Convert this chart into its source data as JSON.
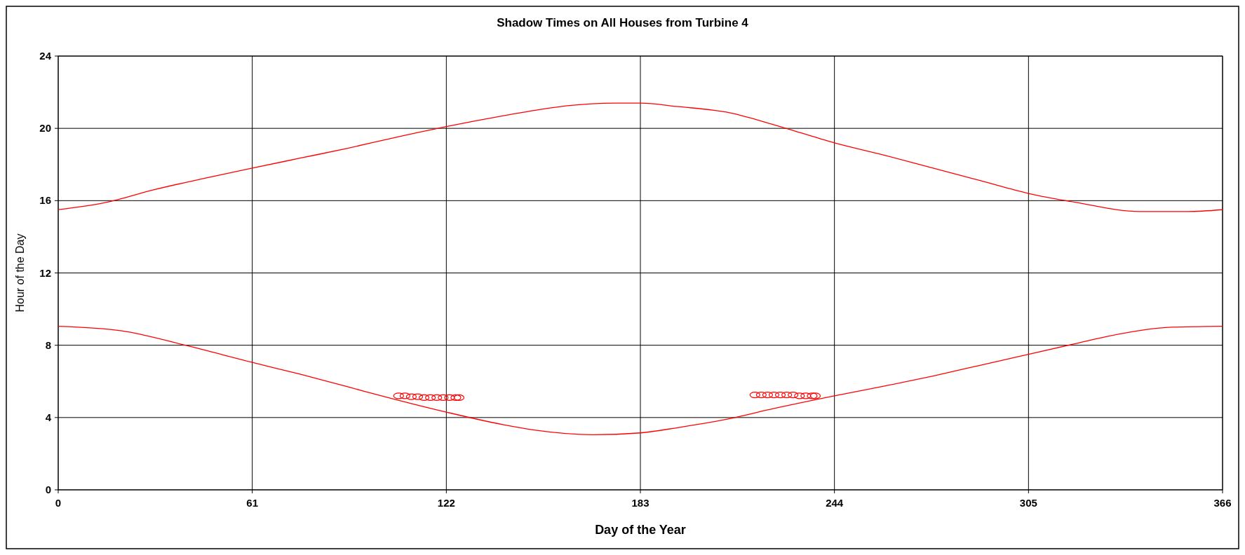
{
  "chart_data": {
    "type": "line",
    "title": "Shadow Times on All Houses from Turbine 4",
    "xlabel": "Day of the Year",
    "ylabel": "Hour of the Day",
    "xlim": [
      0,
      366
    ],
    "xticks": [
      0,
      61,
      122,
      183,
      244,
      305,
      366
    ],
    "ylim": [
      0,
      24
    ],
    "yticks": [
      0,
      4,
      8,
      12,
      16,
      20,
      24
    ],
    "grid": true,
    "series": [
      {
        "color": "#ff0000",
        "marker": "none",
        "x": [
          0,
          15,
          30,
          45,
          61,
          76,
          91,
          106,
          122,
          140,
          150,
          160,
          175,
          183,
          195,
          210,
          225,
          244,
          260,
          275,
          290,
          305,
          320,
          340,
          355,
          366
        ],
        "values": [
          15.5,
          15.9,
          16.6,
          17.2,
          17.8,
          18.35,
          18.9,
          19.5,
          20.1,
          20.7,
          21.0,
          21.25,
          21.4,
          21.4,
          21.2,
          20.9,
          20.2,
          19.2,
          18.5,
          17.8,
          17.1,
          16.4,
          15.9,
          15.4,
          15.4,
          15.5
        ]
      },
      {
        "color": "#ff0000",
        "marker": "none",
        "x": [
          0,
          20,
          40,
          61,
          76,
          91,
          106,
          122,
          140,
          150,
          168,
          183,
          195,
          210,
          225,
          244,
          260,
          275,
          290,
          305,
          320,
          330,
          350,
          366
        ],
        "values": [
          9.05,
          8.8,
          8.0,
          7.05,
          6.4,
          5.7,
          5.0,
          4.3,
          3.6,
          3.3,
          3.05,
          3.15,
          3.45,
          3.9,
          4.5,
          5.2,
          5.75,
          6.3,
          6.9,
          7.5,
          8.1,
          8.5,
          9.0,
          9.05
        ]
      },
      {
        "type": "scatter",
        "color": "#ff0000",
        "marker": "circle",
        "x": [
          107,
          109,
          111,
          113,
          115,
          117,
          119,
          121,
          123,
          125,
          126
        ],
        "values": [
          5.2,
          5.2,
          5.15,
          5.15,
          5.1,
          5.1,
          5.1,
          5.1,
          5.1,
          5.1,
          5.1
        ]
      },
      {
        "type": "scatter",
        "color": "#ff0000",
        "marker": "circle",
        "x": [
          219,
          221,
          223,
          225,
          227,
          229,
          231,
          233,
          235,
          237,
          238
        ],
        "values": [
          5.25,
          5.25,
          5.25,
          5.25,
          5.25,
          5.25,
          5.25,
          5.2,
          5.2,
          5.2,
          5.2
        ]
      }
    ]
  }
}
